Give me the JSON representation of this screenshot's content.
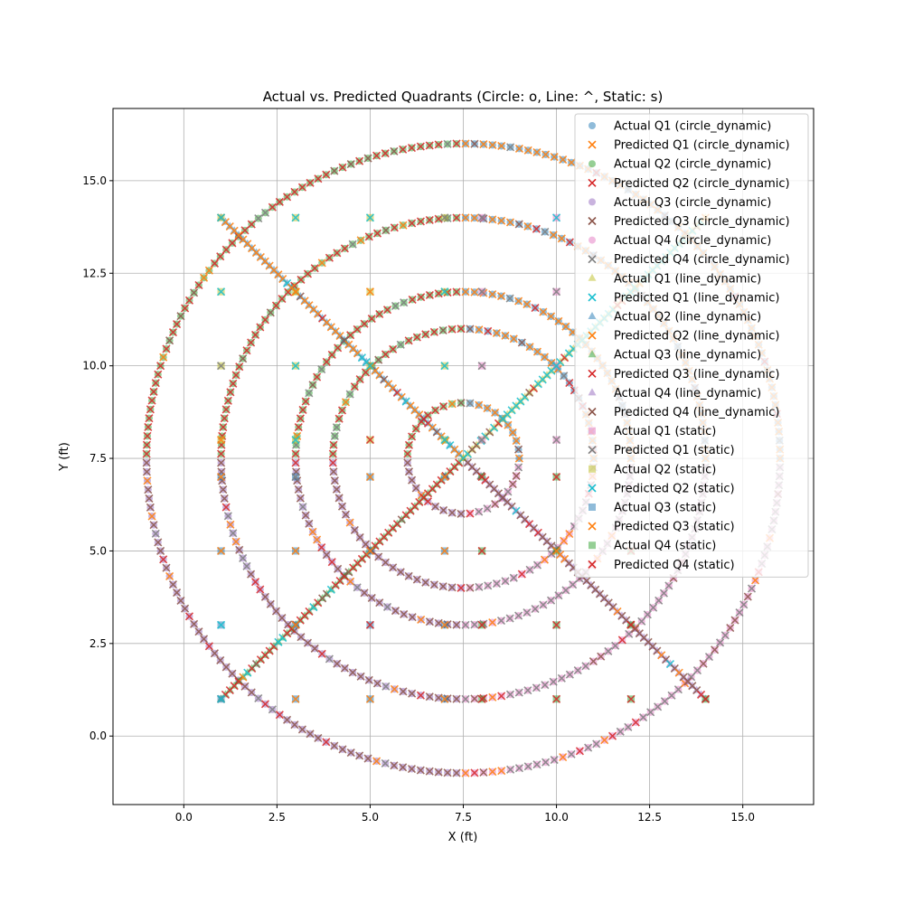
{
  "chart_data": {
    "type": "scatter",
    "title": "Actual vs. Predicted Quadrants (Circle: o, Line: ^, Static: s)",
    "xlabel": "X (ft)",
    "ylabel": "Y (ft)",
    "xlim": [
      -1.9,
      16.9
    ],
    "ylim": [
      -1.85,
      16.95
    ],
    "xticks": [
      0.0,
      2.5,
      5.0,
      7.5,
      10.0,
      12.5,
      15.0
    ],
    "xtick_labels": [
      "0.0",
      "2.5",
      "5.0",
      "7.5",
      "10.0",
      "12.5",
      "15.0"
    ],
    "yticks": [
      0.0,
      2.5,
      5.0,
      7.5,
      10.0,
      12.5,
      15.0
    ],
    "ytick_labels": [
      "0.0",
      "2.5",
      "5.0",
      "7.5",
      "10.0",
      "12.5",
      "15.0"
    ],
    "grid": true,
    "legend_position": "top-right",
    "circles": [
      {
        "cx": 7.5,
        "cy": 7.5,
        "r": 1.5
      },
      {
        "cx": 7.5,
        "cy": 7.5,
        "r": 3.5
      },
      {
        "cx": 7.5,
        "cy": 7.5,
        "r": 4.5
      },
      {
        "cx": 7.5,
        "cy": 7.5,
        "r": 6.5
      },
      {
        "cx": 7.5,
        "cy": 7.5,
        "r": 8.5
      }
    ],
    "lines": [
      {
        "from": [
          1,
          1
        ],
        "to": [
          14,
          14
        ]
      },
      {
        "from": [
          1,
          14
        ],
        "to": [
          14,
          1
        ]
      }
    ],
    "static_points": [
      [
        1,
        14
      ],
      [
        3,
        14
      ],
      [
        5,
        14
      ],
      [
        7,
        14
      ],
      [
        8,
        14
      ],
      [
        10,
        14
      ],
      [
        1,
        12
      ],
      [
        3,
        12
      ],
      [
        5,
        12
      ],
      [
        7,
        12
      ],
      [
        8,
        12
      ],
      [
        10,
        12
      ],
      [
        1,
        10
      ],
      [
        3,
        10
      ],
      [
        5,
        10
      ],
      [
        7,
        10
      ],
      [
        8,
        10
      ],
      [
        10,
        10
      ],
      [
        1,
        8
      ],
      [
        3,
        8
      ],
      [
        5,
        8
      ],
      [
        7,
        8
      ],
      [
        8,
        8
      ],
      [
        10,
        8
      ],
      [
        1,
        7
      ],
      [
        3,
        7
      ],
      [
        5,
        7
      ],
      [
        7,
        7
      ],
      [
        8,
        7
      ],
      [
        10,
        7
      ],
      [
        1,
        5
      ],
      [
        3,
        5
      ],
      [
        5,
        5
      ],
      [
        7,
        5
      ],
      [
        8,
        5
      ],
      [
        10,
        5
      ],
      [
        12,
        5
      ],
      [
        1,
        3
      ],
      [
        3,
        3
      ],
      [
        5,
        3
      ],
      [
        7,
        3
      ],
      [
        8,
        3
      ],
      [
        10,
        3
      ],
      [
        12,
        3
      ],
      [
        1,
        1
      ],
      [
        3,
        1
      ],
      [
        5,
        1
      ],
      [
        7,
        1
      ],
      [
        8,
        1
      ],
      [
        10,
        1
      ],
      [
        12,
        1
      ],
      [
        14,
        1
      ]
    ],
    "series": [
      {
        "name": "Actual Q1 (circle_dynamic)",
        "marker": "o",
        "color": "#1f77b4"
      },
      {
        "name": "Predicted Q1 (circle_dynamic)",
        "marker": "x",
        "color": "#ff7f0e"
      },
      {
        "name": "Actual Q2 (circle_dynamic)",
        "marker": "o",
        "color": "#2ca02c"
      },
      {
        "name": "Predicted Q2 (circle_dynamic)",
        "marker": "x",
        "color": "#d62728"
      },
      {
        "name": "Actual Q3 (circle_dynamic)",
        "marker": "o",
        "color": "#9467bd"
      },
      {
        "name": "Predicted Q3 (circle_dynamic)",
        "marker": "x",
        "color": "#8c564b"
      },
      {
        "name": "Actual Q4 (circle_dynamic)",
        "marker": "o",
        "color": "#e377c2"
      },
      {
        "name": "Predicted Q4 (circle_dynamic)",
        "marker": "x",
        "color": "#7f7f7f"
      },
      {
        "name": "Actual Q1 (line_dynamic)",
        "marker": "^",
        "color": "#bcbd22"
      },
      {
        "name": "Predicted Q1 (line_dynamic)",
        "marker": "x",
        "color": "#17becf"
      },
      {
        "name": "Actual Q2 (line_dynamic)",
        "marker": "^",
        "color": "#1f77b4"
      },
      {
        "name": "Predicted Q2 (line_dynamic)",
        "marker": "x",
        "color": "#ff7f0e"
      },
      {
        "name": "Actual Q3 (line_dynamic)",
        "marker": "^",
        "color": "#2ca02c"
      },
      {
        "name": "Predicted Q3 (line_dynamic)",
        "marker": "x",
        "color": "#d62728"
      },
      {
        "name": "Actual Q4 (line_dynamic)",
        "marker": "^",
        "color": "#9467bd"
      },
      {
        "name": "Predicted Q4 (line_dynamic)",
        "marker": "x",
        "color": "#8c564b"
      },
      {
        "name": "Actual Q1 (static)",
        "marker": "s",
        "color": "#e377c2"
      },
      {
        "name": "Predicted Q1 (static)",
        "marker": "x",
        "color": "#7f7f7f"
      },
      {
        "name": "Actual Q2 (static)",
        "marker": "s",
        "color": "#bcbd22"
      },
      {
        "name": "Predicted Q2 (static)",
        "marker": "x",
        "color": "#17becf"
      },
      {
        "name": "Actual Q3 (static)",
        "marker": "s",
        "color": "#1f77b4"
      },
      {
        "name": "Predicted Q3 (static)",
        "marker": "x",
        "color": "#ff7f0e"
      },
      {
        "name": "Actual Q4 (static)",
        "marker": "s",
        "color": "#2ca02c"
      },
      {
        "name": "Predicted Q4 (static)",
        "marker": "x",
        "color": "#d62728"
      }
    ]
  }
}
